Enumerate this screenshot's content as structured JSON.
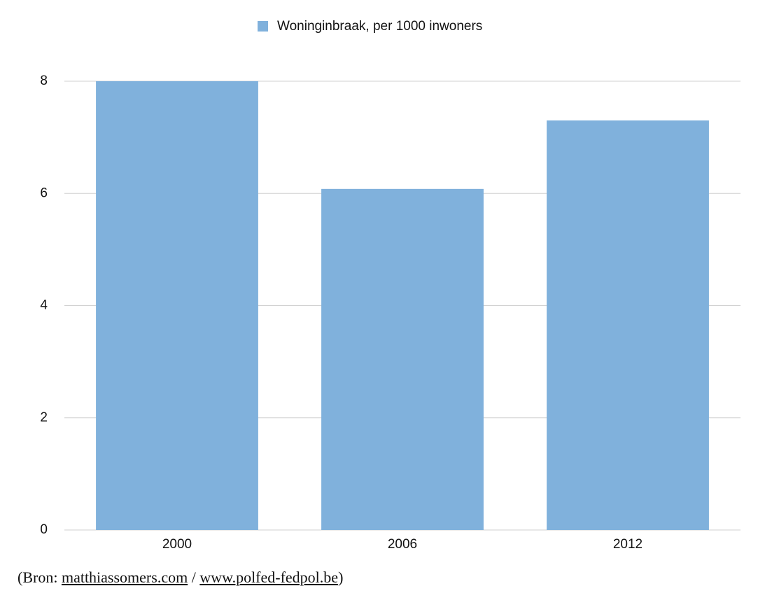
{
  "chart_data": {
    "type": "bar",
    "categories": [
      "2000",
      "2006",
      "2012"
    ],
    "series": [
      {
        "name": "Woninginbraak, per 1000 inwoners",
        "color": "#80b1dc",
        "values": [
          8.0,
          6.08,
          7.3
        ]
      }
    ],
    "ylim": [
      0,
      8
    ],
    "yticks": [
      0,
      2,
      4,
      6,
      8
    ],
    "grid": true,
    "legend": "top"
  },
  "footnote": {
    "lead": "(Bron:",
    "links": [
      "matthiassomers.com",
      "www.polfed-fedpol.be"
    ],
    "separator": "/",
    "end": ")"
  }
}
